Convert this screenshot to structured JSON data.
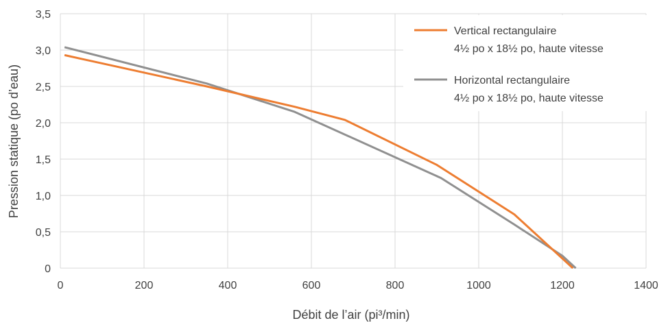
{
  "chart_data": {
    "type": "line",
    "xlabel": "Débit de l’air (pi³/min)",
    "ylabel": "Pression statique (po d’eau)",
    "xlim": [
      0,
      1400
    ],
    "ylim": [
      0,
      3.5
    ],
    "x_ticks": [
      0,
      200,
      400,
      600,
      800,
      1000,
      1200,
      1400
    ],
    "y_ticks": [
      0,
      0.5,
      1.0,
      1.5,
      2.0,
      2.5,
      3.0,
      3.5
    ],
    "x_tick_labels": [
      "0",
      "200",
      "400",
      "600",
      "800",
      "1000",
      "1200",
      "1400"
    ],
    "y_tick_labels": [
      "0",
      "0,5",
      "1,0",
      "1,5",
      "2,0",
      "2,5",
      "3,0",
      "3,5"
    ],
    "grid": true,
    "legend_position": "top-right",
    "series": [
      {
        "name": "Vertical rectangulaire",
        "name_line2": "4½ po x 18½ po, haute vitesse",
        "color": "#ED7D31",
        "x": [
          10,
          350,
          560,
          680,
          900,
          1085,
          1225
        ],
        "y": [
          2.93,
          2.5,
          2.22,
          2.04,
          1.42,
          0.74,
          0.0
        ]
      },
      {
        "name": "Horizontal rectangulaire",
        "name_line2": "4½ po x 18½ po, haute vitesse",
        "color": "#909090",
        "x": [
          10,
          350,
          560,
          910,
          1085,
          1200,
          1232
        ],
        "y": [
          3.04,
          2.54,
          2.15,
          1.24,
          0.6,
          0.17,
          0.0
        ]
      }
    ]
  }
}
